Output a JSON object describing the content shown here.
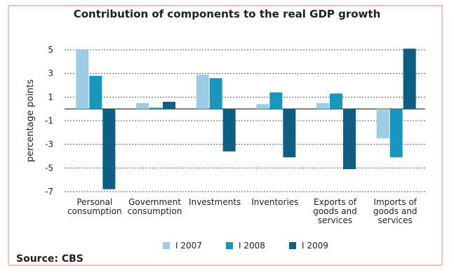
{
  "source": "Source: CBS",
  "chart_data": {
    "type": "bar",
    "title": "Contribution of components to the real GDP growth",
    "ylabel": "percentage points",
    "xlabel": "",
    "ylim": [
      -7,
      5
    ],
    "yticks": [
      "5",
      "3",
      "1",
      "-1",
      "-3",
      "-5",
      "-7"
    ],
    "grid": true,
    "legend": "bottom",
    "categories": [
      [
        "Personal",
        "consumption"
      ],
      [
        "Government",
        "consumption"
      ],
      [
        "Investments"
      ],
      [
        "Inventories"
      ],
      [
        "Exports of",
        "goods and",
        "services"
      ],
      [
        "Imports of",
        "goods and",
        "services"
      ]
    ],
    "series": [
      {
        "name": "I 2007",
        "color": "#9ccde5",
        "values": [
          5.0,
          0.5,
          2.9,
          0.4,
          0.5,
          -2.5
        ]
      },
      {
        "name": "I 2008",
        "color": "#1a96bc",
        "values": [
          2.8,
          0.1,
          2.6,
          1.4,
          1.3,
          -4.1
        ]
      },
      {
        "name": "I 2009",
        "color": "#0f5f85",
        "values": [
          -6.8,
          0.6,
          -3.6,
          -4.1,
          -5.1,
          5.1
        ]
      }
    ]
  }
}
